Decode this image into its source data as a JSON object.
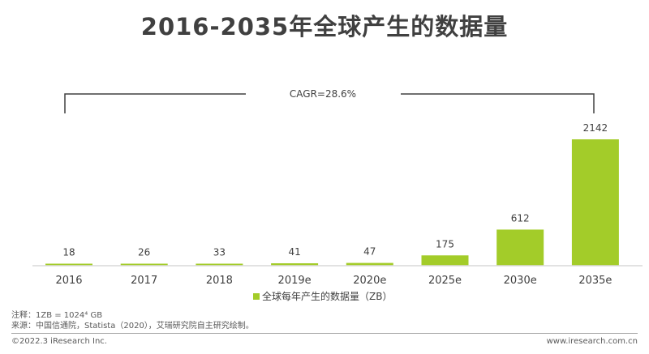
{
  "title": "2016-2035年全球产生的数据量",
  "chart_data": {
    "type": "bar",
    "categories": [
      "2016",
      "2017",
      "2018",
      "2019e",
      "2020e",
      "2025e",
      "2030e",
      "2035e"
    ],
    "series": [
      {
        "name": "全球每年产生的数据量（ZB）",
        "values": [
          18,
          26,
          33,
          41,
          47,
          175,
          612,
          2142
        ]
      }
    ],
    "data_labels": [
      "18",
      "26",
      "33",
      "41",
      "47",
      "175",
      "612",
      "2142"
    ],
    "annotation": "CAGR=28.6%",
    "bar_color": "#a3cc29",
    "axis_color": "#d9d9d9",
    "grid": false,
    "legend_position": "bottom-center"
  },
  "notes": {
    "line1": "注释：1ZB = 1024⁴ GB",
    "line2": "来源：中国信通院，Statista（2020），艾瑞研究院自主研究绘制。"
  },
  "footer": {
    "left": "©2022.3 iResearch Inc.",
    "right": "www.iresearch.com.cn"
  }
}
